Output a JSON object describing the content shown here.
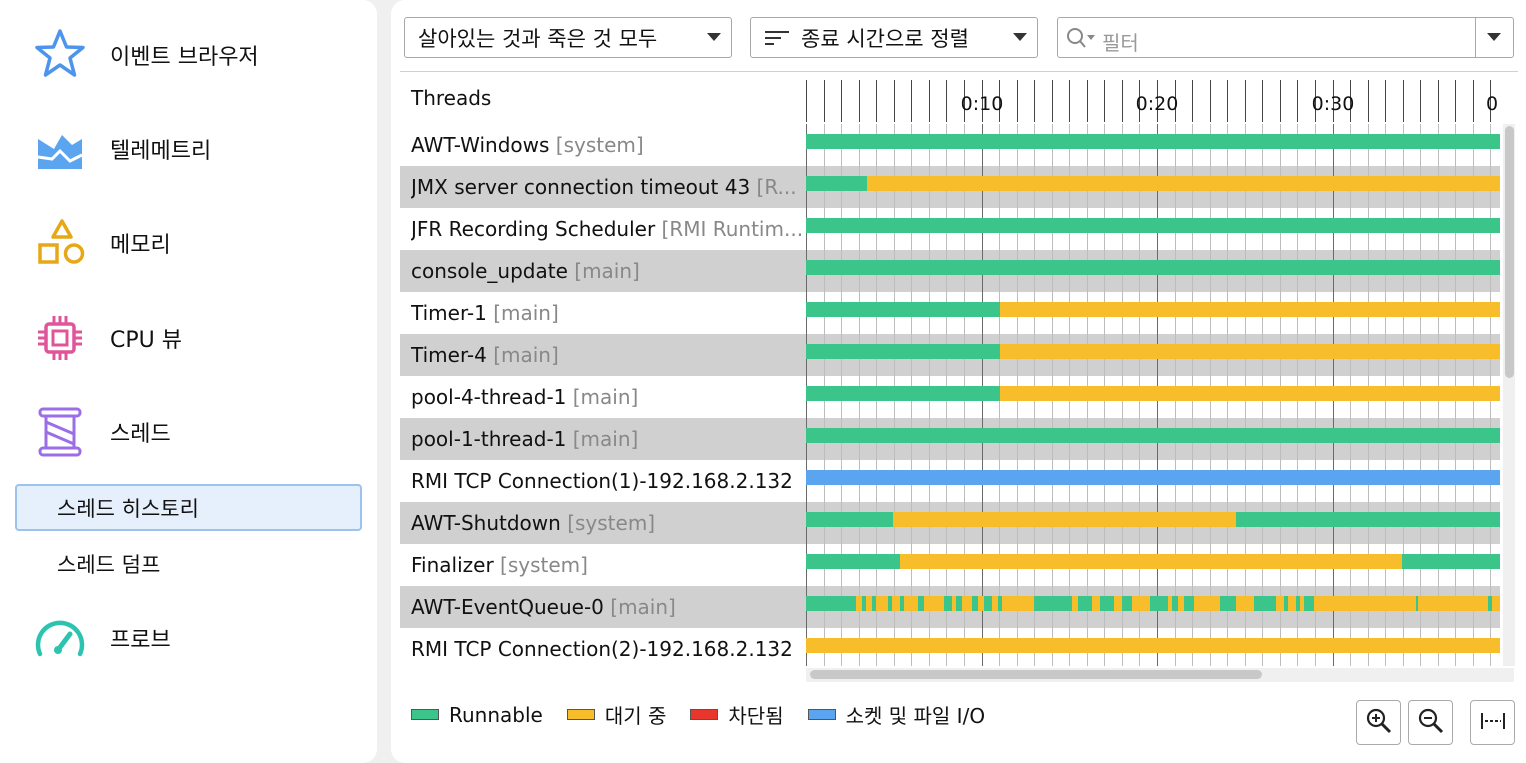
{
  "sidebar": {
    "items": [
      {
        "label": "이벤트 브라우저",
        "icon": "star-icon"
      },
      {
        "label": "텔레메트리",
        "icon": "telemetry-chart-icon"
      },
      {
        "label": "메모리",
        "icon": "shapes-icon"
      },
      {
        "label": "CPU 뷰",
        "icon": "cpu-chip-icon"
      },
      {
        "label": "스레드",
        "icon": "thread-spool-icon"
      }
    ],
    "sub_items": [
      {
        "label": "스레드 히스토리",
        "selected": true
      },
      {
        "label": "스레드 덤프",
        "selected": false
      }
    ],
    "probe": {
      "label": "프로브",
      "icon": "gauge-icon"
    }
  },
  "toolbar": {
    "thread_filter": "살아있는 것과 죽은 것 모두",
    "sort": "종료 시간으로 정렬",
    "filter_placeholder": "필터"
  },
  "timeline": {
    "header": "Threads",
    "tick_labels": [
      "0:10",
      "0:20",
      "0:30",
      "0"
    ]
  },
  "threads": [
    {
      "name": "AWT-Windows",
      "group": "[system]"
    },
    {
      "name": "JMX server connection timeout 43",
      "group": "[R..."
    },
    {
      "name": "JFR Recording Scheduler",
      "group": "[RMI Runtim..."
    },
    {
      "name": "console_update",
      "group": "[main]"
    },
    {
      "name": "Timer-1",
      "group": "[main]"
    },
    {
      "name": "Timer-4",
      "group": "[main]"
    },
    {
      "name": "pool-4-thread-1",
      "group": "[main]"
    },
    {
      "name": "pool-1-thread-1",
      "group": "[main]"
    },
    {
      "name": "RMI TCP Connection(1)-192.168.2.132 ...",
      "group": ""
    },
    {
      "name": "AWT-Shutdown",
      "group": "[system]"
    },
    {
      "name": "Finalizer",
      "group": "[system]"
    },
    {
      "name": "AWT-EventQueue-0",
      "group": "[main]"
    },
    {
      "name": "RMI TCP Connection(2)-192.168.2.132 ...",
      "group": ""
    }
  ],
  "legend": [
    {
      "label": "Runnable",
      "color": "#3cc58a"
    },
    {
      "label": "대기 중",
      "color": "#f7bd2a"
    },
    {
      "label": "차단됨",
      "color": "#e8362d"
    },
    {
      "label": "소켓 및 파일 I/O",
      "color": "#5aa4f0"
    }
  ],
  "buttons": {
    "zoom_in": "zoom-in-icon",
    "zoom_out": "zoom-out-icon",
    "fit": "fit-width-icon"
  }
}
